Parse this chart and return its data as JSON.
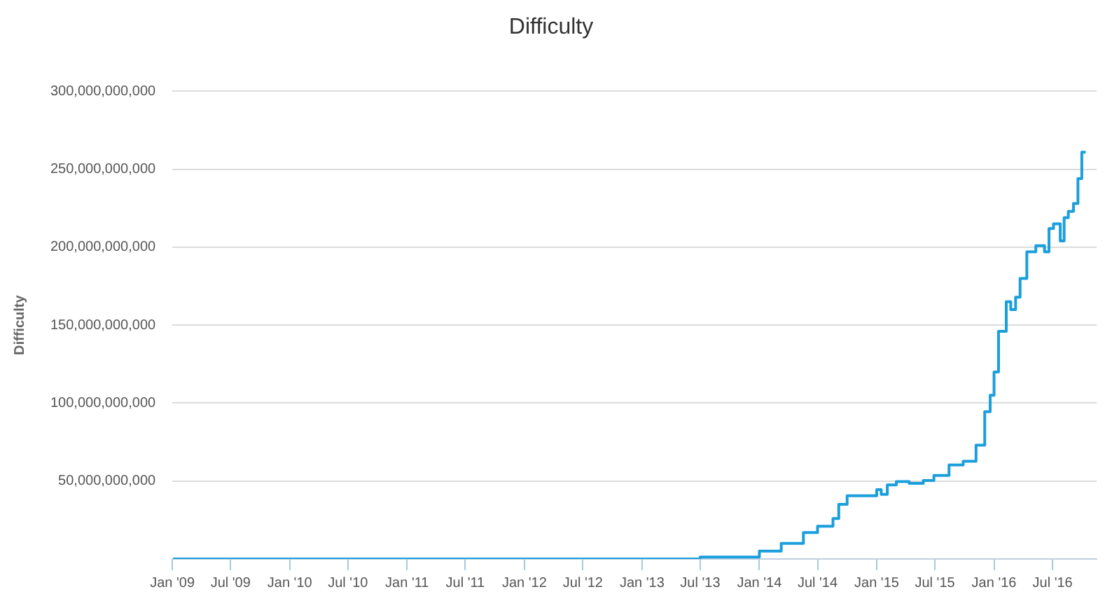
{
  "chart_data": {
    "type": "step",
    "title": "Difficulty",
    "ylabel": "Difficulty",
    "grid": "y",
    "legend": false,
    "marker": "none",
    "line_style": "solid",
    "x": [
      "2009-01-03",
      "2010-01-01",
      "2011-01-01",
      "2012-01-01",
      "2013-01-01",
      "2013-07-01",
      "2014-01-01",
      "2014-03-10",
      "2014-05-18",
      "2014-07-01",
      "2014-08-18",
      "2014-09-05",
      "2014-10-01",
      "2014-11-06",
      "2015-01-01",
      "2015-01-15",
      "2015-02-03",
      "2015-03-03",
      "2015-04-12",
      "2015-05-26",
      "2015-06-28",
      "2015-08-14",
      "2015-09-27",
      "2015-11-06",
      "2015-12-03",
      "2015-12-20",
      "2016-01-01",
      "2016-01-15",
      "2016-02-08",
      "2016-02-22",
      "2016-03-08",
      "2016-03-22",
      "2016-04-12",
      "2016-05-10",
      "2016-06-06",
      "2016-06-20",
      "2016-07-04",
      "2016-07-25",
      "2016-08-06",
      "2016-08-19",
      "2016-09-04",
      "2016-09-18",
      "2016-09-30",
      "2016-10-12"
    ],
    "series": [
      {
        "color": "#1a9fdc",
        "values": [
          0,
          0,
          0,
          0,
          0,
          0,
          1200000000,
          5000000000,
          10000000000,
          17000000000,
          21000000000,
          26000000000,
          35000000000,
          40600000000,
          40600000000,
          44500000000,
          41500000000,
          47500000000,
          49700000000,
          48500000000,
          50300000000,
          53600000000,
          60300000000,
          62700000000,
          73000000000,
          94500000000,
          105000000000,
          120000000000,
          146000000000,
          165000000000,
          160000000000,
          168000000000,
          180000000000,
          197000000000,
          201000000000,
          197000000000,
          212000000000,
          215000000000,
          204000000000,
          219000000000,
          223000000000,
          228000000000,
          244000000000,
          261000000000
        ]
      }
    ],
    "xlim": [
      "2009-01-01",
      "2016-11-15"
    ],
    "xticks": [
      {
        "value": "2009-01",
        "label": "Jan '09"
      },
      {
        "value": "2009-07",
        "label": "Jul '09"
      },
      {
        "value": "2010-01",
        "label": "Jan '10"
      },
      {
        "value": "2010-07",
        "label": "Jul '10"
      },
      {
        "value": "2011-01",
        "label": "Jan '11"
      },
      {
        "value": "2011-07",
        "label": "Jul '11"
      },
      {
        "value": "2012-01",
        "label": "Jan '12"
      },
      {
        "value": "2012-07",
        "label": "Jul '12"
      },
      {
        "value": "2013-01",
        "label": "Jan '13"
      },
      {
        "value": "2013-07",
        "label": "Jul '13"
      },
      {
        "value": "2014-01",
        "label": "Jan '14"
      },
      {
        "value": "2014-07",
        "label": "Jul '14"
      },
      {
        "value": "2015-01",
        "label": "Jan '15"
      },
      {
        "value": "2015-07",
        "label": "Jul '15"
      },
      {
        "value": "2016-01",
        "label": "Jan '16"
      },
      {
        "value": "2016-07",
        "label": "Jul '16"
      }
    ],
    "ylim": [
      0,
      300000000000
    ],
    "yticks": [
      {
        "value": 50000000000,
        "label": "50,000,000,000"
      },
      {
        "value": 100000000000,
        "label": "100,000,000,000"
      },
      {
        "value": 150000000000,
        "label": "150,000,000,000"
      },
      {
        "value": 200000000000,
        "label": "200,000,000,000"
      },
      {
        "value": 250000000000,
        "label": "250,000,000,000"
      },
      {
        "value": 300000000000,
        "label": "300,000,000,000"
      }
    ]
  }
}
